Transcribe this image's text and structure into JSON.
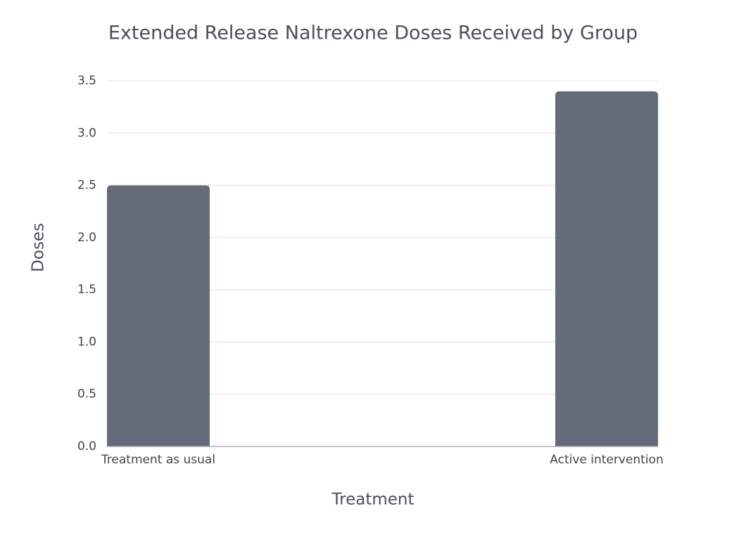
{
  "chart_data": {
    "type": "bar",
    "title": "Extended Release Naltrexone Doses Received by Group",
    "x_label": "Treatment",
    "y_label": "Doses",
    "categories": [
      "Treatment as usual",
      "Active intervention"
    ],
    "values": [
      2.5,
      3.4
    ],
    "color": "#646b79",
    "ylim": [
      0,
      3.5
    ],
    "yticks": [
      {
        "value": 0,
        "label": "0.0"
      },
      0.5,
      {
        "value": 1,
        "label": "1.0"
      },
      1.5,
      {
        "value": 2,
        "label": "2.0"
      },
      2.5,
      {
        "value": 3,
        "label": "3.0"
      },
      3.5
    ],
    "grid": true
  }
}
